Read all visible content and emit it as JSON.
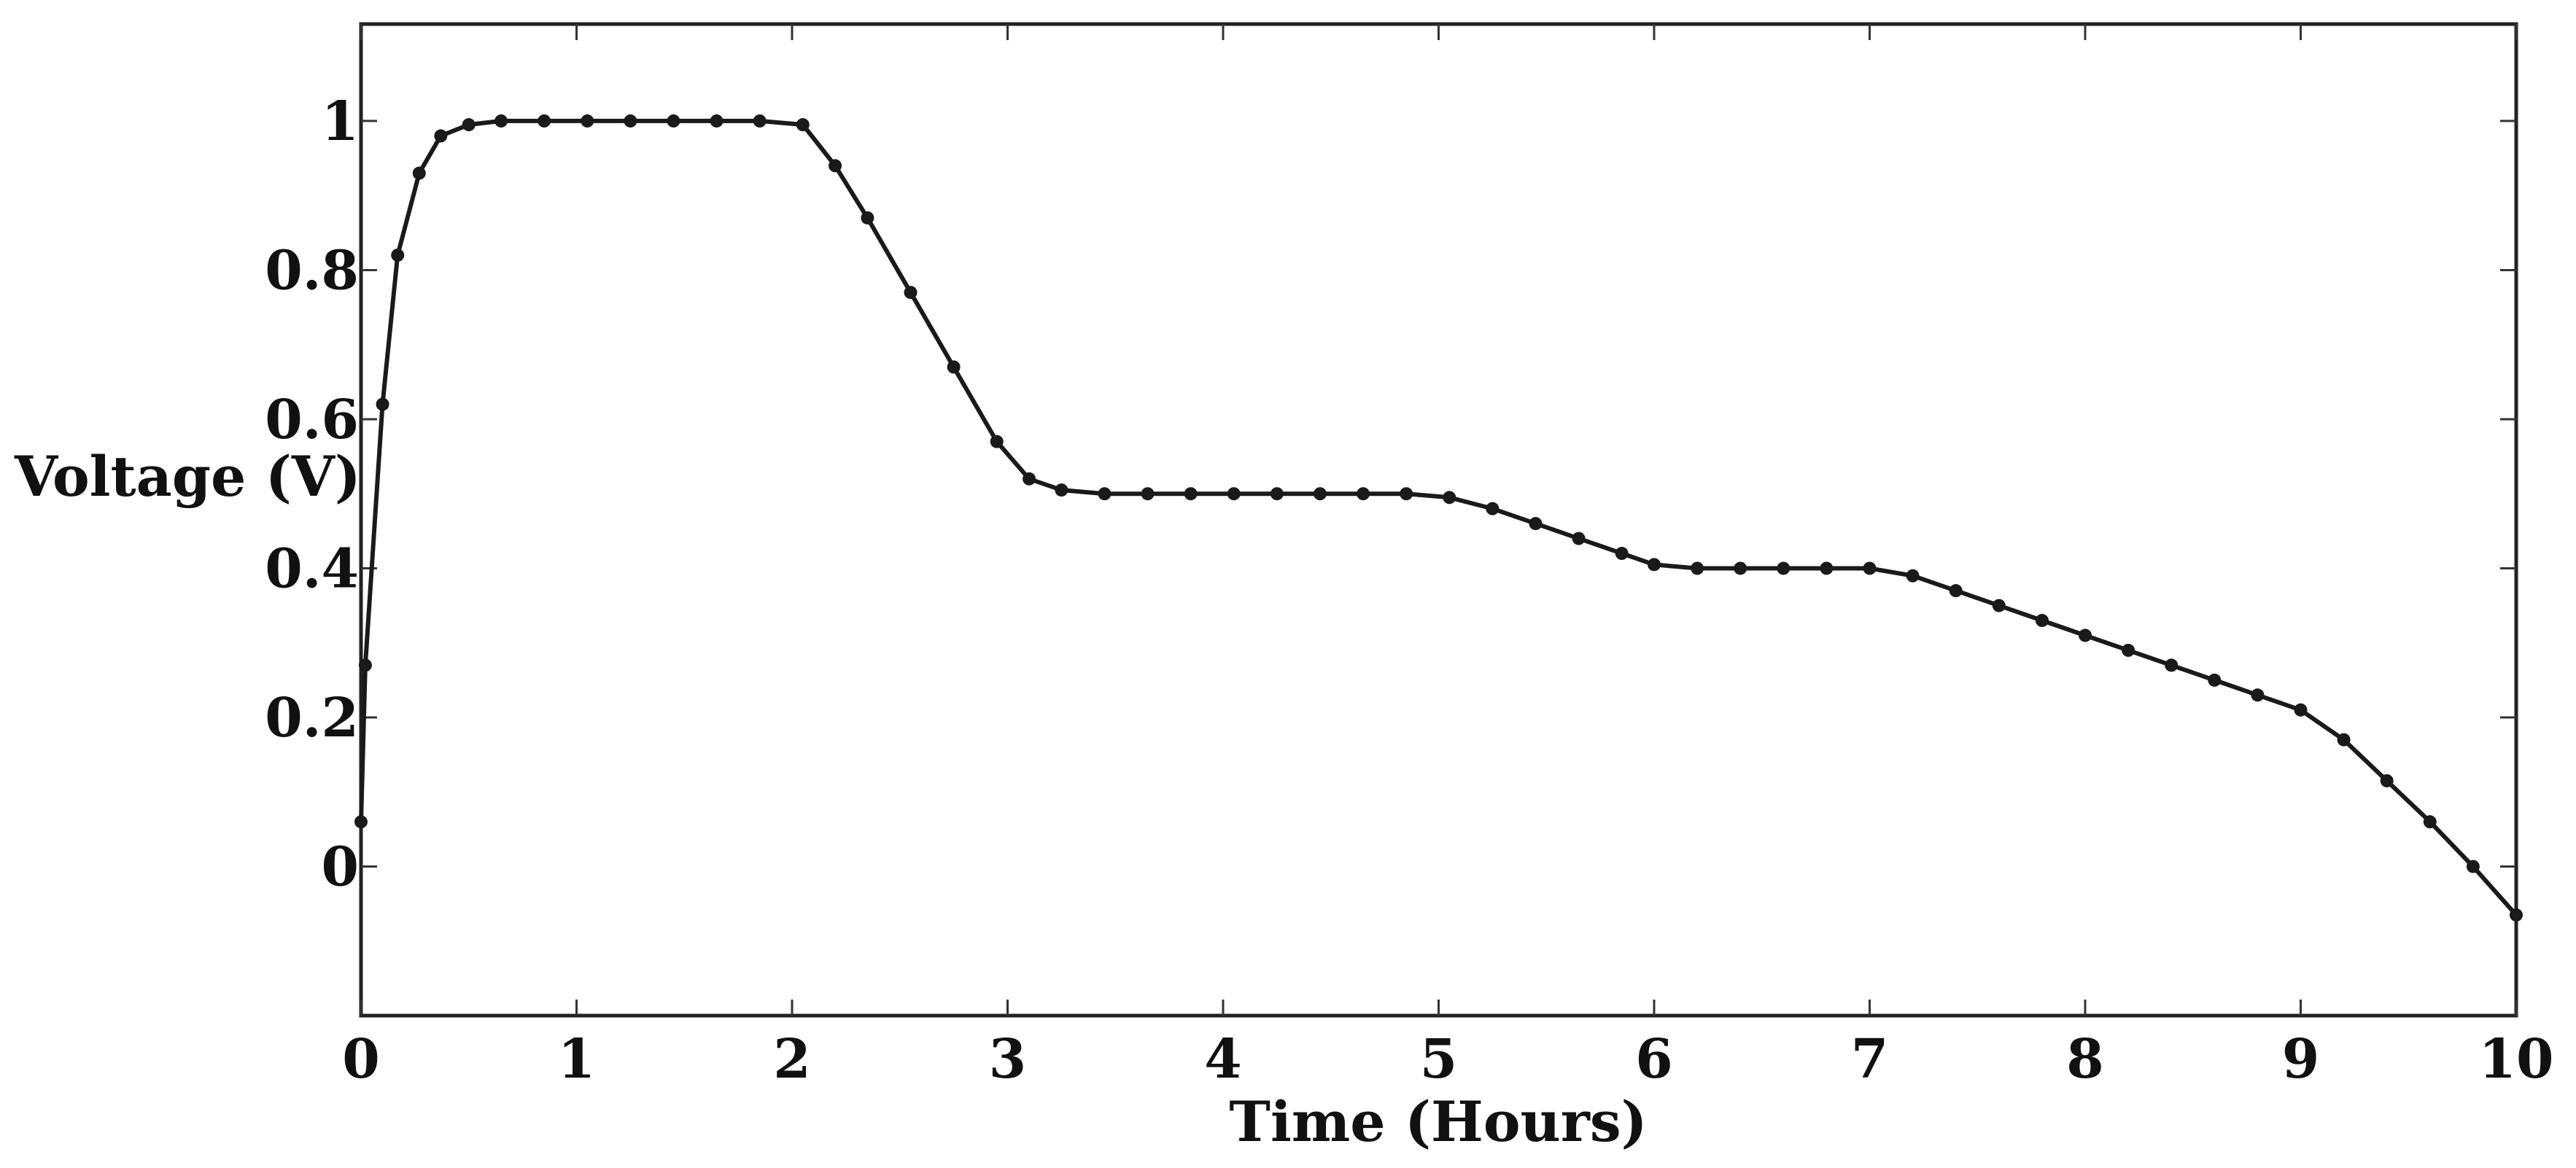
{
  "chart_data": {
    "type": "line",
    "title": "",
    "xlabel": "Time (Hours)",
    "ylabel": "Voltage (V)",
    "xlim": [
      0,
      10
    ],
    "ylim": [
      -0.2,
      1.13
    ],
    "xticks": [
      0,
      1,
      2,
      3,
      4,
      5,
      6,
      7,
      8,
      9,
      10
    ],
    "yticks": [
      0,
      0.2,
      0.4,
      0.6,
      0.8,
      1
    ],
    "xtick_labels": [
      "0",
      "1",
      "2",
      "3",
      "4",
      "5",
      "6",
      "7",
      "8",
      "9",
      "10"
    ],
    "ytick_labels": [
      "0",
      "0.2",
      "0.4",
      "0.6",
      "0.8",
      "1"
    ],
    "grid": false,
    "marker": "dot",
    "line_color": "#1a1a1a",
    "series": [
      {
        "x": [
          0.0,
          0.02,
          0.1,
          0.17,
          0.27,
          0.37,
          0.5,
          0.65,
          0.85,
          1.05,
          1.25,
          1.45,
          1.65,
          1.85,
          2.05,
          2.2,
          2.35,
          2.55,
          2.75,
          2.95,
          3.1,
          3.25,
          3.45,
          3.65,
          3.85,
          4.05,
          4.25,
          4.45,
          4.65,
          4.85,
          5.05,
          5.25,
          5.45,
          5.65,
          5.85,
          6.0,
          6.2,
          6.4,
          6.6,
          6.8,
          7.0,
          7.2,
          7.4,
          7.6,
          7.8,
          8.0,
          8.2,
          8.4,
          8.6,
          8.8,
          9.0,
          9.2,
          9.4,
          9.6,
          9.8,
          10.0
        ],
        "y": [
          0.06,
          0.27,
          0.62,
          0.82,
          0.93,
          0.98,
          0.995,
          1.0,
          1.0,
          1.0,
          1.0,
          1.0,
          1.0,
          1.0,
          0.995,
          0.94,
          0.87,
          0.77,
          0.67,
          0.57,
          0.52,
          0.505,
          0.5,
          0.5,
          0.5,
          0.5,
          0.5,
          0.5,
          0.5,
          0.5,
          0.495,
          0.48,
          0.46,
          0.44,
          0.42,
          0.405,
          0.4,
          0.4,
          0.4,
          0.4,
          0.4,
          0.39,
          0.37,
          0.35,
          0.33,
          0.31,
          0.29,
          0.27,
          0.25,
          0.23,
          0.21,
          0.17,
          0.115,
          0.06,
          0.0,
          -0.065
        ]
      }
    ]
  }
}
